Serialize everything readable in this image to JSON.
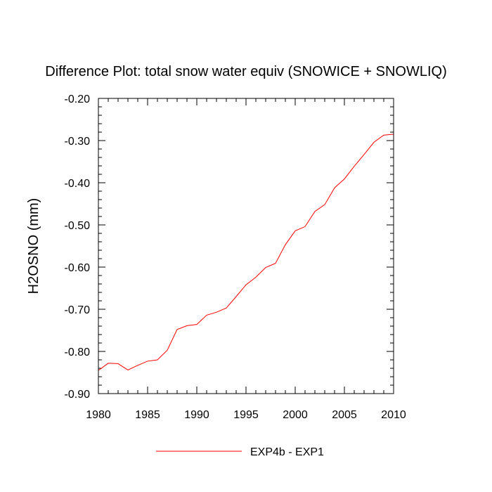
{
  "chart_data": {
    "type": "line",
    "title": "Difference Plot: total snow water equiv (SNOWICE + SNOWLIQ)",
    "xlabel": "",
    "ylabel": "H2OSNO  (mm)",
    "xlim": [
      1980,
      2010
    ],
    "ylim": [
      -0.9,
      -0.2
    ],
    "x_ticks": [
      1980,
      1985,
      1990,
      1995,
      2000,
      2005,
      2010
    ],
    "x_tick_labels": [
      "1980",
      "1985",
      "1990",
      "1995",
      "2000",
      "2005",
      "2010"
    ],
    "y_ticks": [
      -0.9,
      -0.8,
      -0.7,
      -0.6,
      -0.5,
      -0.4,
      -0.3,
      -0.2
    ],
    "y_tick_labels": [
      "-0.90",
      "-0.80",
      "-0.70",
      "-0.60",
      "-0.50",
      "-0.40",
      "-0.30",
      "-0.20"
    ],
    "grid": false,
    "legend_position": "bottom-center",
    "series": [
      {
        "name": "EXP4b - EXP1",
        "color": "#ff0000",
        "x": [
          1980,
          1981,
          1982,
          1983,
          1984,
          1985,
          1986,
          1987,
          1988,
          1989,
          1990,
          1991,
          1992,
          1993,
          1994,
          1995,
          1996,
          1997,
          1998,
          1999,
          2000,
          2001,
          2002,
          2003,
          2004,
          2005,
          2006,
          2007,
          2008,
          2009,
          2010
        ],
        "y": [
          -0.845,
          -0.828,
          -0.829,
          -0.844,
          -0.833,
          -0.823,
          -0.82,
          -0.797,
          -0.748,
          -0.739,
          -0.736,
          -0.714,
          -0.707,
          -0.697,
          -0.67,
          -0.642,
          -0.624,
          -0.601,
          -0.591,
          -0.547,
          -0.514,
          -0.504,
          -0.468,
          -0.452,
          -0.412,
          -0.391,
          -0.361,
          -0.333,
          -0.304,
          -0.287,
          -0.285
        ]
      }
    ]
  }
}
